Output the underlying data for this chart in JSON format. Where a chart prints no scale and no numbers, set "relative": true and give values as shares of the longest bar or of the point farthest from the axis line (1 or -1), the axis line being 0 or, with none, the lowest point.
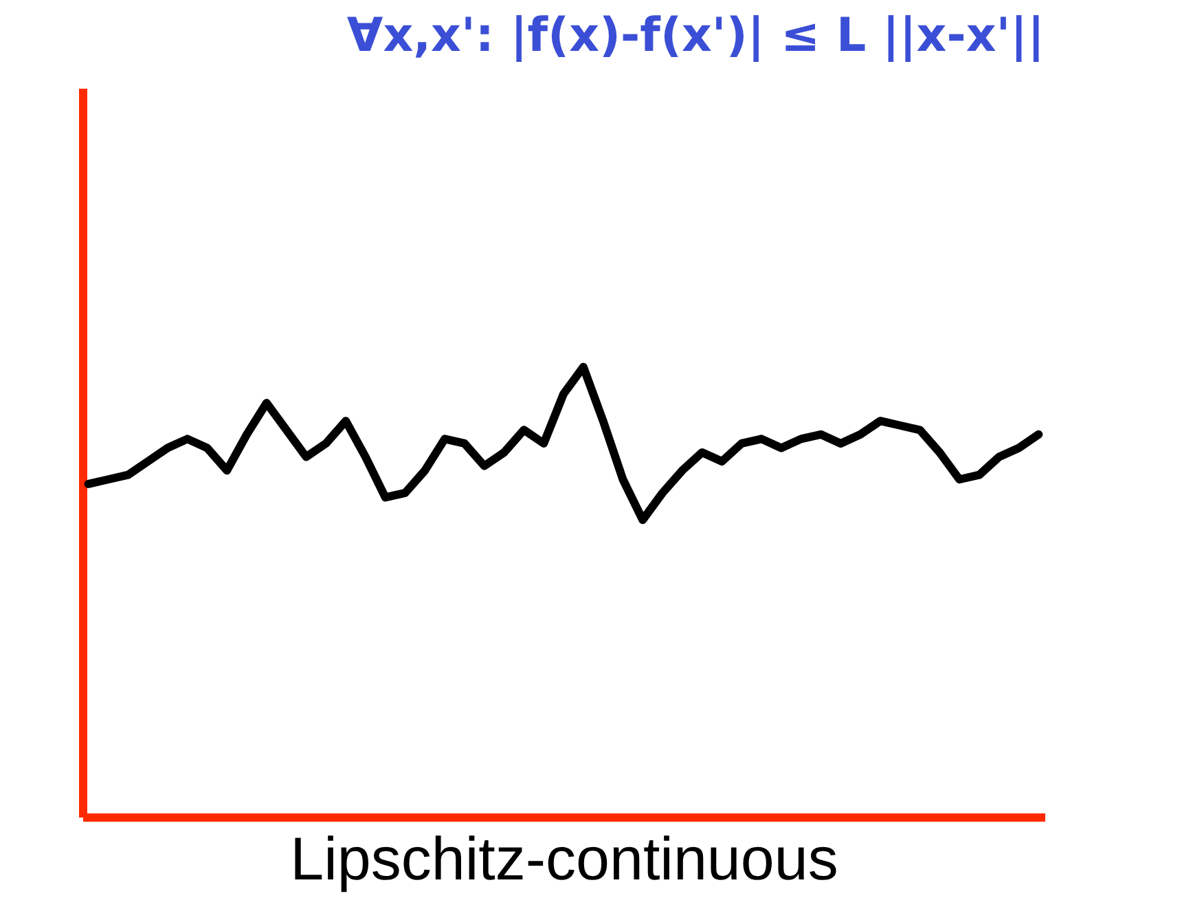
{
  "chart_data": {
    "type": "line",
    "title": "∀x,x': |f(x)-f(x')| ≤ L ||x-x'||",
    "xlabel": "Lipschitz-continuous",
    "relative": true,
    "marker": "none",
    "line_style": "solid",
    "categories": [
      null,
      null,
      null,
      null,
      null,
      null,
      null,
      null,
      null,
      null,
      null,
      null,
      null,
      null,
      null,
      null,
      null,
      null,
      null,
      null,
      null,
      null,
      null,
      null,
      null,
      null,
      null,
      null,
      null,
      null,
      null,
      null,
      null,
      null,
      null,
      null,
      null,
      null,
      null,
      null,
      null,
      null,
      null,
      null,
      null,
      null,
      null,
      null,
      null
    ],
    "series": [
      {
        "color": "#000000",
        "values": [
          0.74,
          0.75,
          0.76,
          0.79,
          0.82,
          0.84,
          0.82,
          0.77,
          0.85,
          0.92,
          0.86,
          0.8,
          0.83,
          0.88,
          0.8,
          0.71,
          0.72,
          0.77,
          0.84,
          0.83,
          0.78,
          0.81,
          0.86,
          0.83,
          0.94,
          1,
          0.88,
          0.75,
          0.66,
          0.72,
          0.77,
          0.81,
          0.79,
          0.83,
          0.84,
          0.82,
          0.84,
          0.85,
          0.83,
          0.85,
          0.88,
          0.87,
          0.86,
          0.81,
          0.75,
          0.76,
          0.8,
          0.82,
          0.85
        ]
      }
    ]
  }
}
